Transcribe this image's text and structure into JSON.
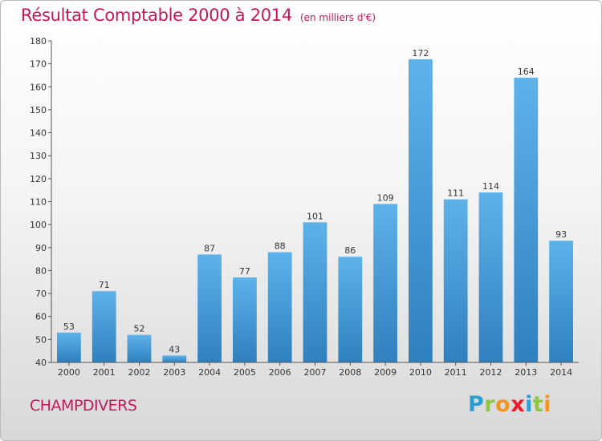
{
  "header": {
    "title": "Résultat Comptable 2000 à 2014",
    "subtitle": "(en milliers d'€)"
  },
  "footer": {
    "commune": "CHAMPDIVERS",
    "logo_letters": [
      {
        "ch": "P",
        "color": "#2a9fd6"
      },
      {
        "ch": "r",
        "color": "#8dc63f"
      },
      {
        "ch": "o",
        "color": "#f7941d"
      },
      {
        "ch": "x",
        "color": "#ed1c24"
      },
      {
        "ch": "i",
        "color": "#2a9fd6"
      },
      {
        "ch": "t",
        "color": "#8dc63f"
      },
      {
        "ch": "i",
        "color": "#f7941d"
      }
    ]
  },
  "chart_data": {
    "type": "bar",
    "categories": [
      "2000",
      "2001",
      "2002",
      "2003",
      "2004",
      "2005",
      "2006",
      "2007",
      "2008",
      "2009",
      "2010",
      "2011",
      "2012",
      "2013",
      "2014"
    ],
    "values": [
      53,
      71,
      52,
      43,
      87,
      77,
      88,
      101,
      86,
      109,
      172,
      111,
      114,
      164,
      93
    ],
    "value_labels": [
      "53",
      "71",
      "52",
      "43",
      "87",
      "77",
      "88",
      "101",
      "86",
      "109",
      "172",
      "111",
      "114",
      "164",
      "93"
    ],
    "yticks": [
      "40",
      "50",
      "60",
      "70",
      "80",
      "90",
      "100",
      "110",
      "120",
      "130",
      "140",
      "150",
      "160",
      "170",
      "180"
    ],
    "ylim": [
      40,
      180
    ],
    "grid": false,
    "bar_color": "#3a98db",
    "bar_color_light": "#5eb2ea",
    "bar_color_dark": "#2f80be"
  }
}
